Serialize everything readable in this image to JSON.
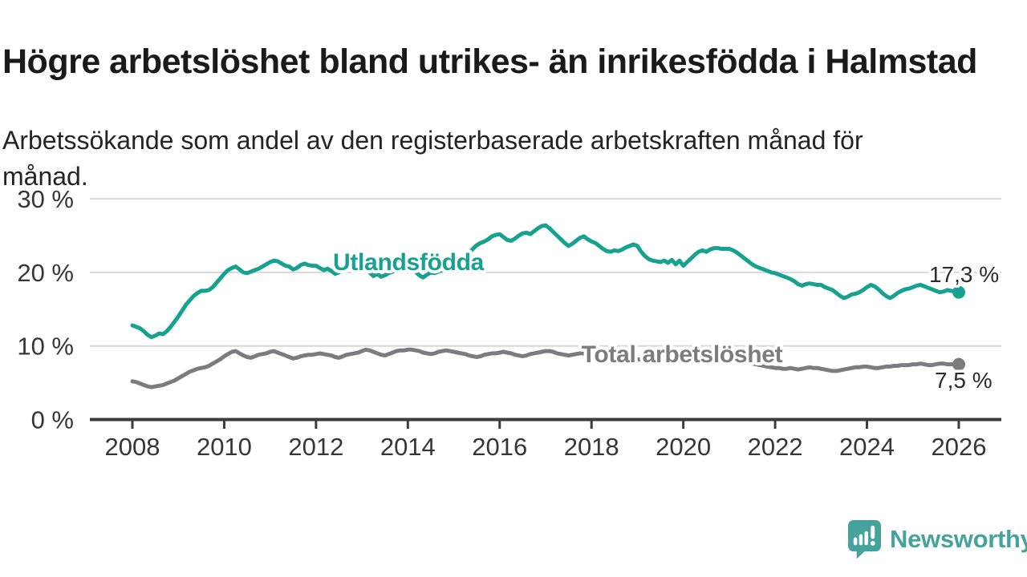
{
  "title": "Högre arbetslöshet bland utrikes- än inrikesfödda i Halmstad",
  "subtitle": "Arbetssökande som andel av den registerbaserade arbetskraften månad för månad.",
  "footer": {
    "brand": "Newsworthy"
  },
  "colors": {
    "series_foreign": "#16a191",
    "series_total": "#7c7c80",
    "grid": "#d8d8d8",
    "axis": "#3b3b40",
    "axis_text": "#35353a",
    "value_label_text": "#2b2b2b",
    "brand_teal": "#46a29c"
  },
  "chart_data": {
    "type": "line",
    "x_unit": "month",
    "x_range": [
      "2008-01",
      "2026-01"
    ],
    "ylim": [
      0,
      30
    ],
    "grid": "horizontal",
    "legend_position": "inline-labels",
    "x_ticks": [
      {
        "year": 2008,
        "label": "2008"
      },
      {
        "year": 2010,
        "label": "2010"
      },
      {
        "year": 2012,
        "label": "2012"
      },
      {
        "year": 2014,
        "label": "2014"
      },
      {
        "year": 2016,
        "label": "2016"
      },
      {
        "year": 2018,
        "label": "2018"
      },
      {
        "year": 2020,
        "label": "2020"
      },
      {
        "year": 2022,
        "label": "2022"
      },
      {
        "year": 2024,
        "label": "2024"
      },
      {
        "year": 2026,
        "label": "2026"
      }
    ],
    "y_ticks": [
      {
        "value": 0,
        "label": "0 %"
      },
      {
        "value": 10,
        "label": "10 %"
      },
      {
        "value": 20,
        "label": "20 %"
      },
      {
        "value": 30,
        "label": "30 %"
      }
    ],
    "series": [
      {
        "name": "Utlandsfödda",
        "color": "#16a191",
        "end_label": "17,3 %",
        "last_value": 17.3,
        "values": [
          12.8,
          12.6,
          12.4,
          12.0,
          11.5,
          11.2,
          11.4,
          11.7,
          11.6,
          12.0,
          12.6,
          13.3,
          14.0,
          14.8,
          15.6,
          16.2,
          16.8,
          17.2,
          17.5,
          17.5,
          17.6,
          18.0,
          18.6,
          19.2,
          19.8,
          20.3,
          20.6,
          20.8,
          20.4,
          20.0,
          19.9,
          20.1,
          20.3,
          20.5,
          20.8,
          21.1,
          21.4,
          21.6,
          21.5,
          21.2,
          20.9,
          20.8,
          20.4,
          20.6,
          21.0,
          21.2,
          21.0,
          20.9,
          20.9,
          20.6,
          20.3,
          20.5,
          20.2,
          19.8,
          20.0,
          20.3,
          20.5,
          20.6,
          20.5,
          20.6,
          20.7,
          20.4,
          20.0,
          19.5,
          19.8,
          19.4,
          19.6,
          19.9,
          20.1,
          20.3,
          20.4,
          20.5,
          20.6,
          20.4,
          20.1,
          19.6,
          19.3,
          19.7,
          20.0,
          19.9,
          20.1,
          20.3,
          20.5,
          20.7,
          20.8,
          21.2,
          21.6,
          22.1,
          22.6,
          23.2,
          23.7,
          24.0,
          24.2,
          24.5,
          24.9,
          25.1,
          25.2,
          24.8,
          24.4,
          24.3,
          24.6,
          25.0,
          25.3,
          25.4,
          25.2,
          25.6,
          26.0,
          26.3,
          26.4,
          26.0,
          25.5,
          25.0,
          24.5,
          24.0,
          23.6,
          23.9,
          24.3,
          24.7,
          24.9,
          24.5,
          24.2,
          24.0,
          23.6,
          23.2,
          22.9,
          22.8,
          23.0,
          22.9,
          23.1,
          23.4,
          23.6,
          23.8,
          23.6,
          22.8,
          22.2,
          21.8,
          21.6,
          21.5,
          21.4,
          21.6,
          21.3,
          21.7,
          21.1,
          21.6,
          20.9,
          21.4,
          21.9,
          22.4,
          22.8,
          23.0,
          22.8,
          23.1,
          23.3,
          23.3,
          23.2,
          23.2,
          23.2,
          23.0,
          22.7,
          22.3,
          21.9,
          21.5,
          21.1,
          20.8,
          20.6,
          20.4,
          20.2,
          20.0,
          19.9,
          19.7,
          19.5,
          19.3,
          19.1,
          18.8,
          18.4,
          18.2,
          18.4,
          18.5,
          18.4,
          18.3,
          18.3,
          18.0,
          17.8,
          17.6,
          17.2,
          16.8,
          16.5,
          16.7,
          17.0,
          17.1,
          17.3,
          17.6,
          18.0,
          18.3,
          18.1,
          17.7,
          17.2,
          16.8,
          16.5,
          16.8,
          17.2,
          17.5,
          17.7,
          17.8,
          18.0,
          18.2,
          18.3,
          18.1,
          17.9,
          17.7,
          17.5,
          17.3,
          17.4,
          17.6,
          17.5,
          17.4,
          17.3
        ]
      },
      {
        "name": "Total arbetslöshet",
        "color": "#7c7c80",
        "end_label": "7,5 %",
        "last_value": 7.5,
        "values": [
          5.2,
          5.1,
          4.9,
          4.7,
          4.5,
          4.4,
          4.5,
          4.6,
          4.7,
          4.9,
          5.1,
          5.3,
          5.6,
          5.9,
          6.2,
          6.5,
          6.7,
          6.9,
          7.0,
          7.1,
          7.3,
          7.6,
          7.9,
          8.2,
          8.6,
          8.9,
          9.2,
          9.3,
          9.0,
          8.7,
          8.5,
          8.4,
          8.6,
          8.8,
          8.9,
          9.0,
          9.2,
          9.3,
          9.1,
          8.9,
          8.7,
          8.5,
          8.3,
          8.4,
          8.6,
          8.7,
          8.8,
          8.8,
          8.9,
          9.0,
          8.9,
          8.8,
          8.7,
          8.5,
          8.4,
          8.6,
          8.8,
          8.9,
          9.0,
          9.1,
          9.3,
          9.5,
          9.4,
          9.2,
          9.0,
          8.8,
          8.7,
          8.9,
          9.1,
          9.3,
          9.4,
          9.4,
          9.5,
          9.5,
          9.4,
          9.3,
          9.1,
          9.0,
          8.9,
          9.0,
          9.2,
          9.3,
          9.4,
          9.3,
          9.2,
          9.1,
          9.0,
          8.9,
          8.7,
          8.6,
          8.5,
          8.6,
          8.8,
          8.9,
          9.0,
          9.0,
          9.1,
          9.2,
          9.1,
          9.0,
          8.8,
          8.7,
          8.6,
          8.7,
          8.9,
          9.0,
          9.1,
          9.2,
          9.3,
          9.3,
          9.2,
          9.0,
          8.9,
          8.8,
          8.7,
          8.8,
          8.9,
          9.0,
          9.0,
          8.9,
          8.8,
          8.7,
          8.6,
          8.4,
          8.3,
          8.2,
          8.1,
          8.2,
          8.3,
          8.4,
          8.4,
          8.3,
          8.2,
          8.1,
          8.0,
          7.9,
          7.8,
          7.8,
          7.9,
          8.0,
          8.0,
          8.1,
          8.0,
          7.9,
          7.8,
          7.7,
          7.8,
          8.3,
          8.7,
          8.9,
          9.0,
          8.9,
          8.8,
          8.7,
          8.6,
          8.6,
          8.5,
          8.5,
          8.4,
          8.2,
          8.0,
          7.8,
          7.6,
          7.5,
          7.4,
          7.3,
          7.2,
          7.1,
          7.0,
          7.0,
          6.9,
          6.9,
          7.0,
          6.9,
          6.8,
          6.9,
          7.0,
          7.1,
          7.0,
          7.0,
          6.9,
          6.8,
          6.7,
          6.6,
          6.6,
          6.7,
          6.8,
          6.9,
          7.0,
          7.1,
          7.1,
          7.2,
          7.2,
          7.1,
          7.0,
          7.0,
          7.1,
          7.2,
          7.2,
          7.3,
          7.3,
          7.4,
          7.4,
          7.4,
          7.5,
          7.5,
          7.6,
          7.5,
          7.4,
          7.4,
          7.5,
          7.6,
          7.6,
          7.5,
          7.5,
          7.5,
          7.5
        ]
      }
    ]
  }
}
